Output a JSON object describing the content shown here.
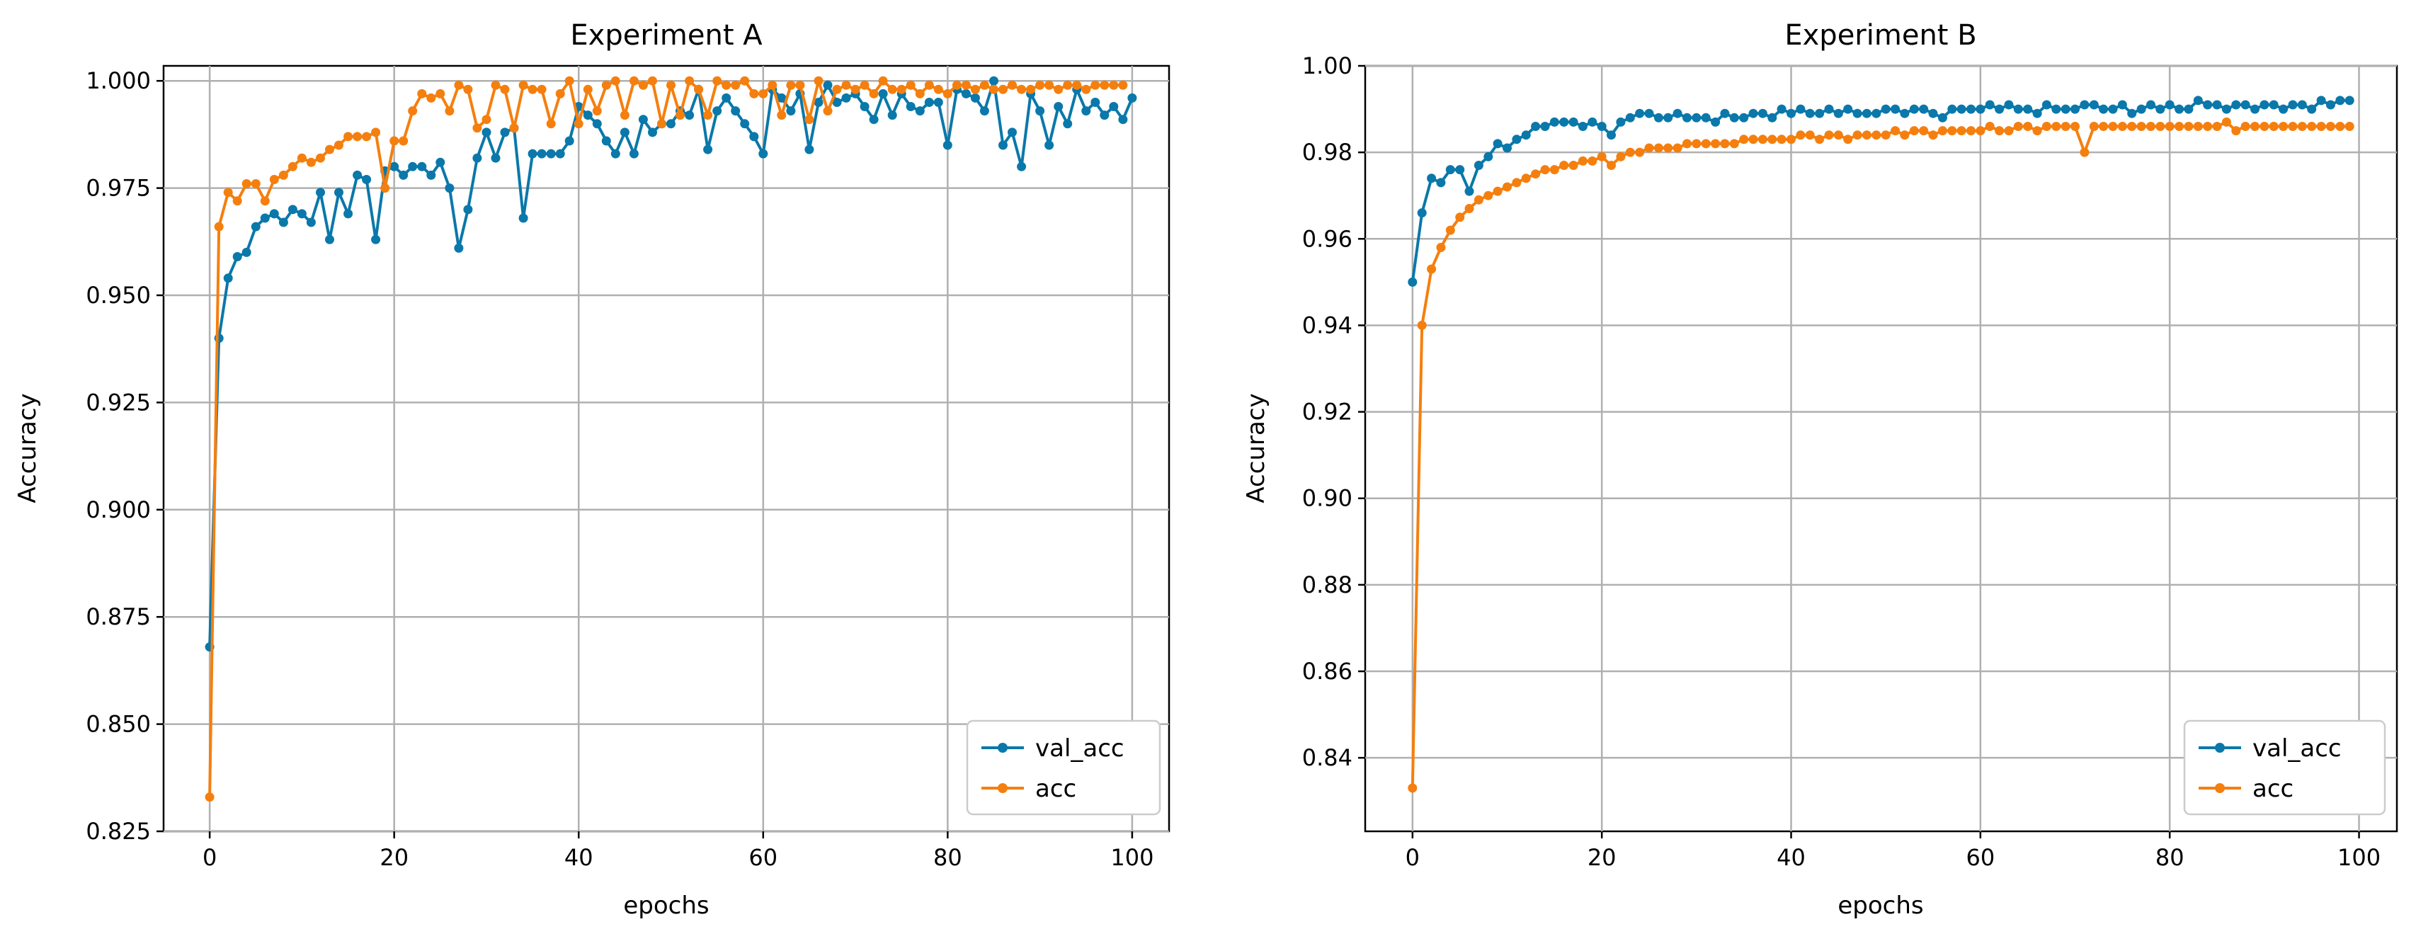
{
  "chart_data": [
    {
      "type": "line",
      "title": "Experiment A",
      "xlabel": "epochs",
      "ylabel": "Accuracy",
      "xlim": [
        -5,
        104
      ],
      "ylim": [
        0.825,
        1.0035
      ],
      "xticks": [
        0,
        20,
        40,
        60,
        80,
        100
      ],
      "xtick_labels": [
        "0",
        "20",
        "40",
        "60",
        "80",
        "100"
      ],
      "yticks": [
        0.825,
        0.85,
        0.875,
        0.9,
        0.925,
        0.95,
        0.975,
        1.0
      ],
      "ytick_labels": [
        "0.825",
        "0.850",
        "0.875",
        "0.900",
        "0.925",
        "0.950",
        "0.975",
        "1.000"
      ],
      "grid": true,
      "legend_position": "lower-right",
      "series": [
        {
          "name": "val_acc",
          "color": "#0a78aa",
          "x_start": 0,
          "values": [
            0.868,
            0.94,
            0.954,
            0.959,
            0.96,
            0.966,
            0.968,
            0.969,
            0.967,
            0.97,
            0.969,
            0.967,
            0.974,
            0.963,
            0.974,
            0.969,
            0.978,
            0.977,
            0.963,
            0.979,
            0.98,
            0.978,
            0.98,
            0.98,
            0.978,
            0.981,
            0.975,
            0.961,
            0.97,
            0.982,
            0.988,
            0.982,
            0.988,
            0.989,
            0.968,
            0.983,
            0.983,
            0.983,
            0.983,
            0.986,
            0.994,
            0.992,
            0.99,
            0.986,
            0.983,
            0.988,
            0.983,
            0.991,
            0.988,
            0.99,
            0.99,
            0.993,
            0.992,
            0.998,
            0.984,
            0.993,
            0.996,
            0.993,
            0.99,
            0.987,
            0.983,
            0.998,
            0.996,
            0.993,
            0.997,
            0.984,
            0.995,
            0.999,
            0.995,
            0.996,
            0.997,
            0.994,
            0.991,
            0.997,
            0.992,
            0.997,
            0.994,
            0.993,
            0.995,
            0.995,
            0.985,
            0.998,
            0.997,
            0.996,
            0.993,
            1.0,
            0.985,
            0.988,
            0.98,
            0.997,
            0.993,
            0.985,
            0.994,
            0.99,
            0.998,
            0.993,
            0.995,
            0.992,
            0.994,
            0.991,
            0.996
          ]
        },
        {
          "name": "acc",
          "color": "#f57f0e",
          "x_start": 0,
          "values": [
            0.833,
            0.966,
            0.974,
            0.972,
            0.976,
            0.976,
            0.972,
            0.977,
            0.978,
            0.98,
            0.982,
            0.981,
            0.982,
            0.984,
            0.985,
            0.987,
            0.987,
            0.987,
            0.988,
            0.975,
            0.986,
            0.986,
            0.993,
            0.997,
            0.996,
            0.997,
            0.993,
            0.999,
            0.998,
            0.989,
            0.991,
            0.999,
            0.998,
            0.989,
            0.999,
            0.998,
            0.998,
            0.99,
            0.997,
            1.0,
            0.99,
            0.998,
            0.993,
            0.999,
            1.0,
            0.992,
            1.0,
            0.999,
            1.0,
            0.99,
            0.999,
            0.992,
            1.0,
            0.998,
            0.992,
            1.0,
            0.999,
            0.999,
            1.0,
            0.997,
            0.997,
            0.999,
            0.992,
            0.999,
            0.999,
            0.991,
            1.0,
            0.993,
            0.998,
            0.999,
            0.998,
            0.999,
            0.997,
            1.0,
            0.998,
            0.998,
            0.999,
            0.997,
            0.999,
            0.998,
            0.997,
            0.999,
            0.999,
            0.998,
            0.999,
            0.998,
            0.998,
            0.999,
            0.998,
            0.998,
            0.999,
            0.999,
            0.998,
            0.999,
            0.999,
            0.998,
            0.999,
            0.999,
            0.999,
            0.999
          ]
        }
      ]
    },
    {
      "type": "line",
      "title": "Experiment B",
      "xlabel": "epochs",
      "ylabel": "Accuracy",
      "xlim": [
        -5,
        104
      ],
      "ylim": [
        0.823,
        1.0
      ],
      "xticks": [
        0,
        20,
        40,
        60,
        80,
        100
      ],
      "xtick_labels": [
        "0",
        "20",
        "40",
        "60",
        "80",
        "100"
      ],
      "yticks": [
        0.84,
        0.86,
        0.88,
        0.9,
        0.92,
        0.94,
        0.96,
        0.98,
        1.0
      ],
      "ytick_labels": [
        "0.84",
        "0.86",
        "0.88",
        "0.90",
        "0.92",
        "0.94",
        "0.96",
        "0.98",
        "1.00"
      ],
      "grid": true,
      "legend_position": "lower-right",
      "series": [
        {
          "name": "val_acc",
          "color": "#0a78aa",
          "x_start": 0,
          "values": [
            0.95,
            0.966,
            0.974,
            0.973,
            0.976,
            0.976,
            0.971,
            0.977,
            0.979,
            0.982,
            0.981,
            0.983,
            0.984,
            0.986,
            0.986,
            0.987,
            0.987,
            0.987,
            0.986,
            0.987,
            0.986,
            0.984,
            0.987,
            0.988,
            0.989,
            0.989,
            0.988,
            0.988,
            0.989,
            0.988,
            0.988,
            0.988,
            0.987,
            0.989,
            0.988,
            0.988,
            0.989,
            0.989,
            0.988,
            0.99,
            0.989,
            0.99,
            0.989,
            0.989,
            0.99,
            0.989,
            0.99,
            0.989,
            0.989,
            0.989,
            0.99,
            0.99,
            0.989,
            0.99,
            0.99,
            0.989,
            0.988,
            0.99,
            0.99,
            0.99,
            0.99,
            0.991,
            0.99,
            0.991,
            0.99,
            0.99,
            0.989,
            0.991,
            0.99,
            0.99,
            0.99,
            0.991,
            0.991,
            0.99,
            0.99,
            0.991,
            0.989,
            0.99,
            0.991,
            0.99,
            0.991,
            0.99,
            0.99,
            0.992,
            0.991,
            0.991,
            0.99,
            0.991,
            0.991,
            0.99,
            0.991,
            0.991,
            0.99,
            0.991,
            0.991,
            0.99,
            0.992,
            0.991,
            0.992,
            0.992
          ]
        },
        {
          "name": "acc",
          "color": "#f57f0e",
          "x_start": 0,
          "values": [
            0.833,
            0.94,
            0.953,
            0.958,
            0.962,
            0.965,
            0.967,
            0.969,
            0.97,
            0.971,
            0.972,
            0.973,
            0.974,
            0.975,
            0.976,
            0.976,
            0.977,
            0.977,
            0.978,
            0.978,
            0.979,
            0.977,
            0.979,
            0.98,
            0.98,
            0.981,
            0.981,
            0.981,
            0.981,
            0.982,
            0.982,
            0.982,
            0.982,
            0.982,
            0.982,
            0.983,
            0.983,
            0.983,
            0.983,
            0.983,
            0.983,
            0.984,
            0.984,
            0.983,
            0.984,
            0.984,
            0.983,
            0.984,
            0.984,
            0.984,
            0.984,
            0.985,
            0.984,
            0.985,
            0.985,
            0.984,
            0.985,
            0.985,
            0.985,
            0.985,
            0.985,
            0.986,
            0.985,
            0.985,
            0.986,
            0.986,
            0.985,
            0.986,
            0.986,
            0.986,
            0.986,
            0.98,
            0.986,
            0.986,
            0.986,
            0.986,
            0.986,
            0.986,
            0.986,
            0.986,
            0.986,
            0.986,
            0.986,
            0.986,
            0.986,
            0.986,
            0.987,
            0.985,
            0.986,
            0.986,
            0.986,
            0.986,
            0.986,
            0.986,
            0.986,
            0.986,
            0.986,
            0.986,
            0.986,
            0.986
          ]
        }
      ]
    }
  ]
}
